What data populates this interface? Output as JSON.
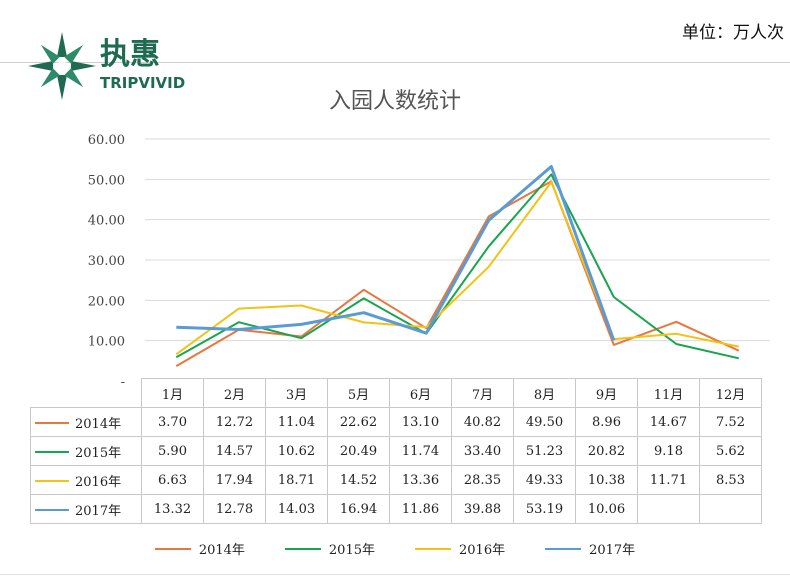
{
  "unit_label": "单位：万人次",
  "logo": {
    "cn": "执惠",
    "en": "TRIPVIVID"
  },
  "chart_data": {
    "type": "line",
    "title": "入园人数统计",
    "categories": [
      "1月",
      "2月",
      "3月",
      "5月",
      "6月",
      "7月",
      "8月",
      "9月",
      "11月",
      "12月"
    ],
    "ylim": [
      0,
      60
    ],
    "yticks": [
      "-",
      "10.00",
      "20.00",
      "30.00",
      "40.00",
      "50.00",
      "60.00"
    ],
    "grid": true,
    "legend_position": "bottom",
    "series": [
      {
        "name": "2014年",
        "color": "#E8773D",
        "values": [
          3.7,
          12.72,
          11.04,
          22.62,
          13.1,
          40.82,
          49.5,
          8.96,
          14.67,
          7.52
        ],
        "labels": [
          "3.70",
          "12.72",
          "11.04",
          "22.62",
          "13.10",
          "40.82",
          "49.50",
          "8.96",
          "14.67",
          "7.52"
        ]
      },
      {
        "name": "2015年",
        "color": "#17A550",
        "values": [
          5.9,
          14.57,
          10.62,
          20.49,
          11.74,
          33.4,
          51.23,
          20.82,
          9.18,
          5.62
        ],
        "labels": [
          "5.90",
          "14.57",
          "10.62",
          "20.49",
          "11.74",
          "33.40",
          "51.23",
          "20.82",
          "9.18",
          "5.62"
        ]
      },
      {
        "name": "2016年",
        "color": "#F2C215",
        "values": [
          6.63,
          17.94,
          18.71,
          14.52,
          13.36,
          28.35,
          49.33,
          10.38,
          11.71,
          8.53
        ],
        "labels": [
          "6.63",
          "17.94",
          "18.71",
          "14.52",
          "13.36",
          "28.35",
          "49.33",
          "10.38",
          "11.71",
          "8.53"
        ]
      },
      {
        "name": "2017年",
        "color": "#5B9BD5",
        "values": [
          13.32,
          12.78,
          14.03,
          16.94,
          11.86,
          39.88,
          53.19,
          10.06,
          null,
          null
        ],
        "labels": [
          "13.32",
          "12.78",
          "14.03",
          "16.94",
          "11.86",
          "39.88",
          "53.19",
          "10.06",
          "",
          ""
        ]
      }
    ]
  }
}
